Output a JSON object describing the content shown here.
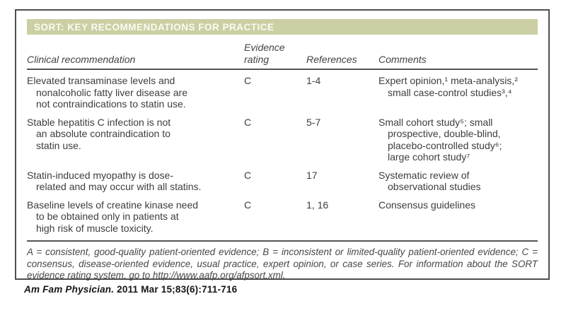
{
  "colors": {
    "header_bar_bg": "#cccfa3",
    "header_bar_text": "#fbfbf3",
    "body_text": "#3d3d3d",
    "rule": "#55565a",
    "frame_border": "#4e4f52"
  },
  "table": {
    "title": "SORT: KEY RECOMMENDATIONS FOR PRACTICE",
    "columns": [
      "Clinical recommendation",
      "Evidence rating",
      "References",
      "Comments"
    ],
    "rows": [
      {
        "recommendation": "Elevated transaminase levels and\nnonalcoholic fatty liver disease are\nnot contraindications to statin use.",
        "rating": "C",
        "references": "1-4",
        "comments": "Expert opinion,¹ meta-analysis,²\nsmall case-control studies³,⁴"
      },
      {
        "recommendation": "Stable hepatitis C infection is not\nan absolute contraindication to\nstatin use.",
        "rating": "C",
        "references": "5-7",
        "comments": "Small cohort study⁵; small\nprospective, double-blind,\nplacebo-controlled study⁶;\nlarge cohort study⁷"
      },
      {
        "recommendation": "Statin-induced myopathy is dose-\nrelated and may occur with all statins.",
        "rating": "C",
        "references": "17",
        "comments": "Systematic review of\nobservational studies"
      },
      {
        "recommendation": "Baseline levels of creatine kinase need\nto be obtained only in patients at\nhigh risk of muscle toxicity.",
        "rating": "C",
        "references": "1, 16",
        "comments": "Consensus guidelines"
      }
    ],
    "footnote": "A = consistent, good-quality patient-oriented evidence; B = inconsistent or limited-quality patient-oriented evidence; C = consensus, disease-oriented evidence, usual practice, expert opinion, or case series. For information about the SORT evidence rating system, go to http://www.aafp.org/afpsort.xml."
  },
  "citation": {
    "journal": "Am Fam Physician.",
    "detail": " 2011 Mar 15;83(6):711-716"
  }
}
